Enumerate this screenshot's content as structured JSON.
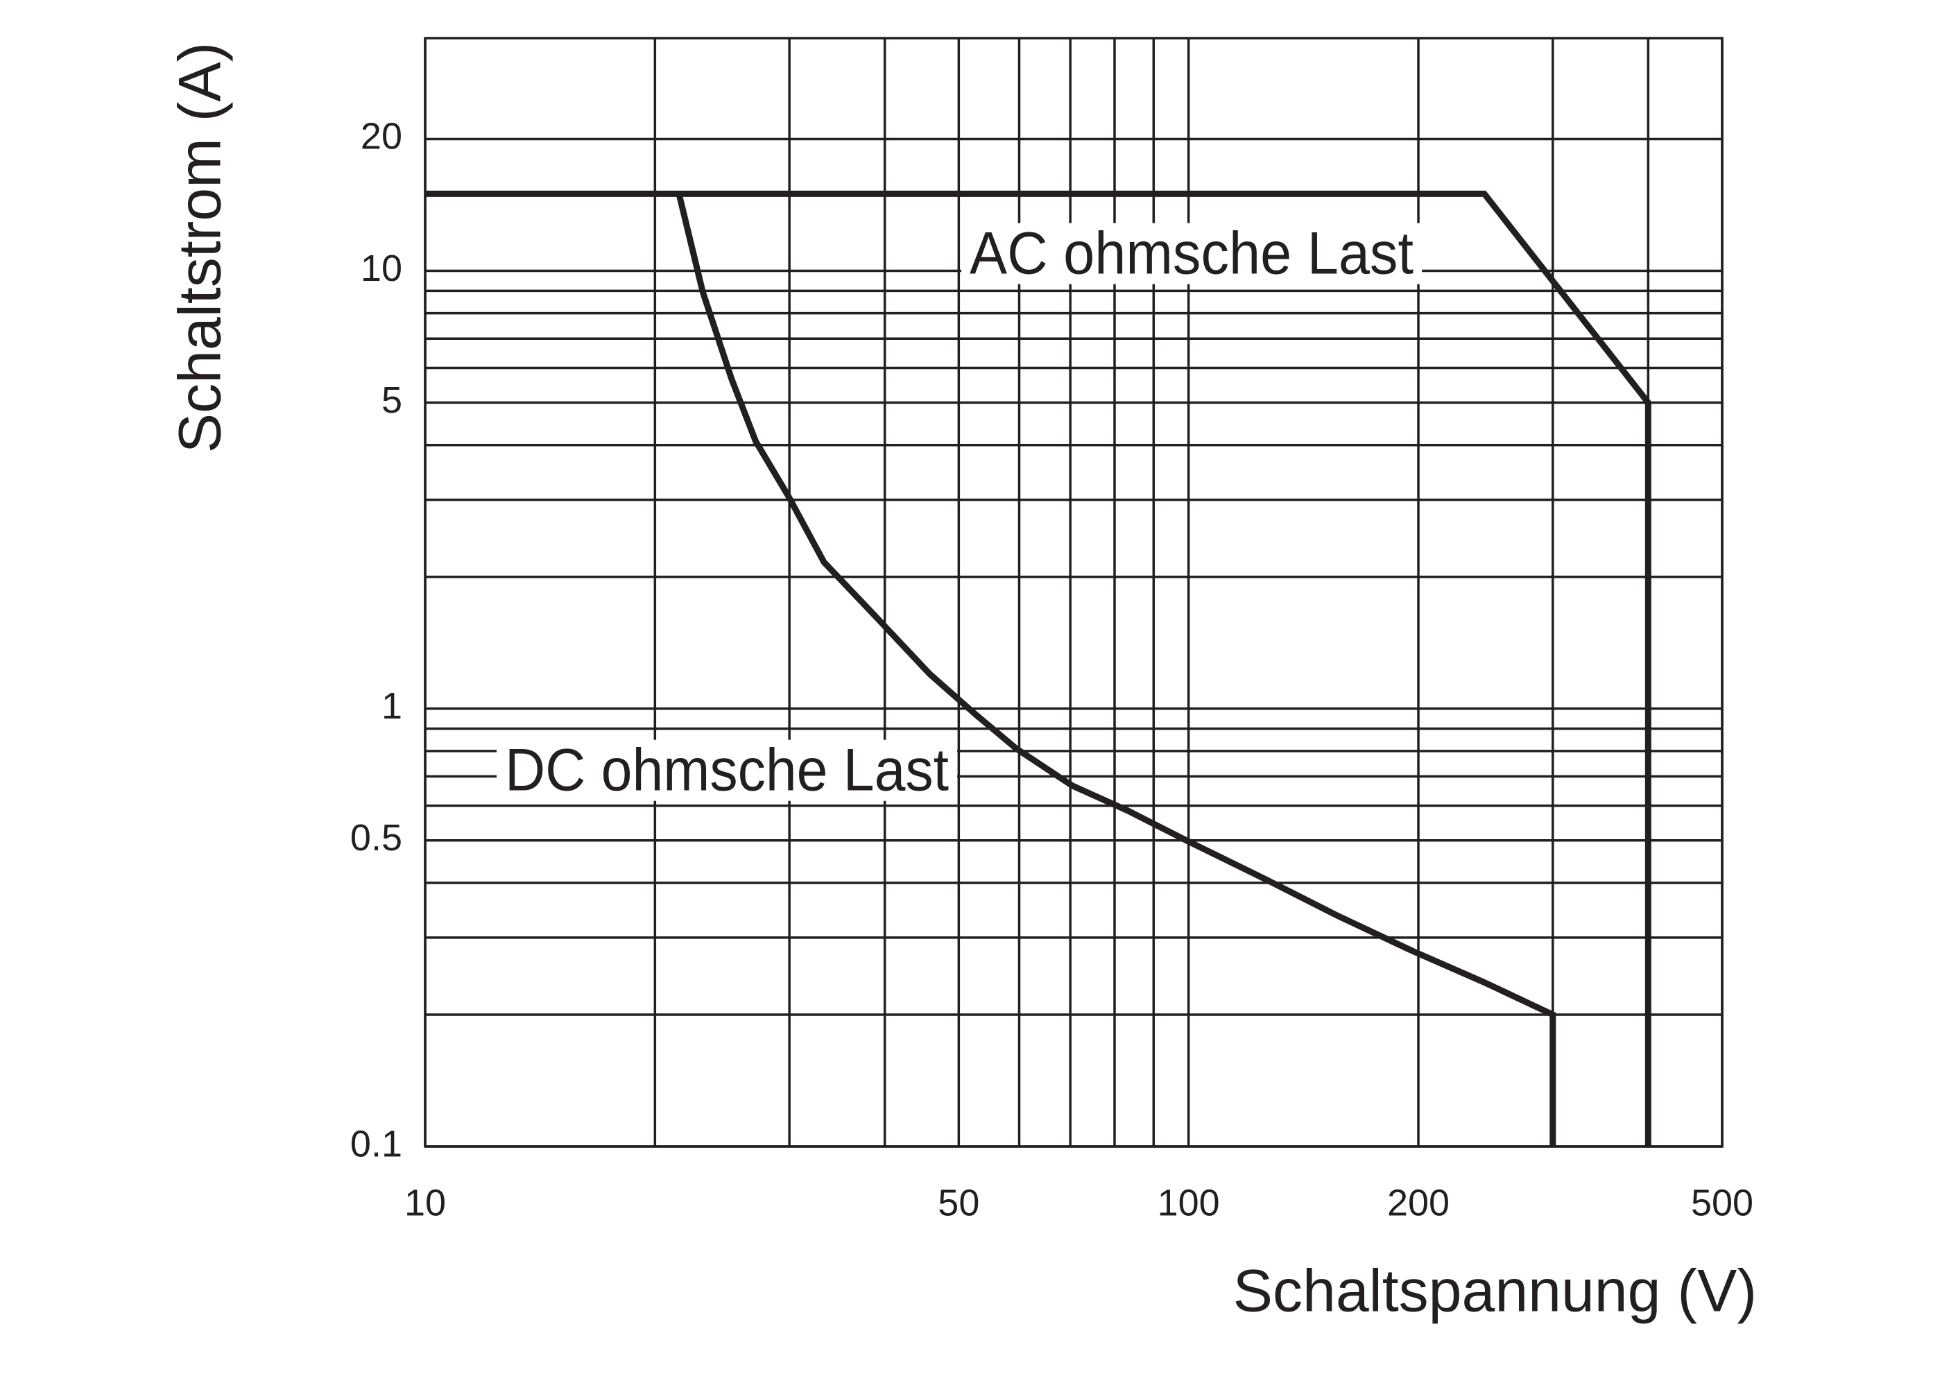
{
  "chart_data": {
    "type": "line",
    "x_label": "Schaltspannung (V)",
    "y_label": "Schaltstrom (A)",
    "log_x": true,
    "log_y": true,
    "grid": true,
    "xlim": [
      10,
      500
    ],
    "xticks": [
      10,
      50,
      100,
      200,
      500
    ],
    "xminor": [
      20,
      30,
      40,
      60,
      70,
      80,
      90,
      300,
      400
    ],
    "ylim": [
      0.1,
      34
    ],
    "yticks": [
      0.1,
      0.5,
      1,
      5,
      10,
      20
    ],
    "yminor": [
      0.2,
      0.3,
      0.4,
      0.6,
      0.7,
      0.8,
      0.9,
      2,
      3,
      4,
      6,
      7,
      8,
      9
    ],
    "series": [
      {
        "name": "AC ohmsche Last",
        "color": "#231f20",
        "x": [
          10,
          244,
          400,
          400
        ],
        "values": [
          15,
          15,
          5,
          0.1
        ]
      },
      {
        "name": "DC ohmsche Last",
        "color": "#231f20",
        "x": [
          21.5,
          23.1,
          25.2,
          27.1,
          29.9,
          33.3,
          38.7,
          45.8,
          52.6,
          59.5,
          70.4,
          83.2,
          100,
          126,
          157,
          197,
          244,
          300,
          300
        ],
        "values": [
          15,
          8.95,
          5.66,
          4.08,
          3.06,
          2.16,
          1.64,
          1.2,
          0.97,
          0.81,
          0.667,
          0.585,
          0.497,
          0.408,
          0.336,
          0.279,
          0.237,
          0.2,
          0.1
        ]
      }
    ]
  }
}
